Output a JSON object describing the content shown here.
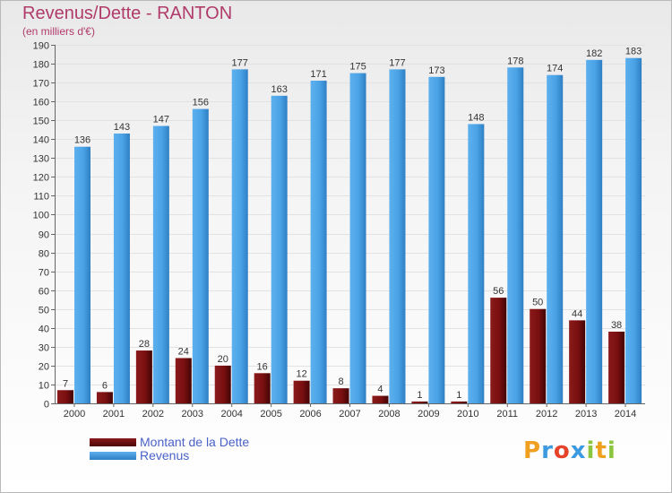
{
  "chart_data": {
    "type": "bar",
    "title": "Revenus/Dette - RANTON",
    "subtitle": "(en milliers d'€)",
    "categories": [
      "2000",
      "2001",
      "2002",
      "2003",
      "2004",
      "2005",
      "2006",
      "2007",
      "2008",
      "2009",
      "2010",
      "2011",
      "2012",
      "2013",
      "2014"
    ],
    "series": [
      {
        "name": "Montant de la Dette",
        "color": "#7a0f10",
        "values": [
          7,
          6,
          28,
          24,
          20,
          16,
          12,
          8,
          4,
          1,
          1,
          56,
          50,
          44,
          38
        ]
      },
      {
        "name": "Revenus",
        "color": "#3f9ae0",
        "values": [
          136,
          143,
          147,
          156,
          177,
          163,
          171,
          175,
          177,
          173,
          148,
          178,
          174,
          182,
          183
        ]
      }
    ],
    "ylim": [
      0,
      190
    ],
    "yticks": [
      0,
      10,
      20,
      30,
      40,
      50,
      60,
      70,
      80,
      90,
      100,
      110,
      120,
      130,
      140,
      150,
      160,
      170,
      180,
      190
    ],
    "grid": true,
    "legend": "bottom-left"
  },
  "logo": {
    "letters": [
      "P",
      "r",
      "o",
      "x",
      "i",
      "t",
      "i"
    ],
    "colors": [
      "#f0a020",
      "#3c9be0",
      "#e5442b",
      "#3c9be0",
      "#8cc63f",
      "#f0a020",
      "#8cc63f"
    ]
  }
}
